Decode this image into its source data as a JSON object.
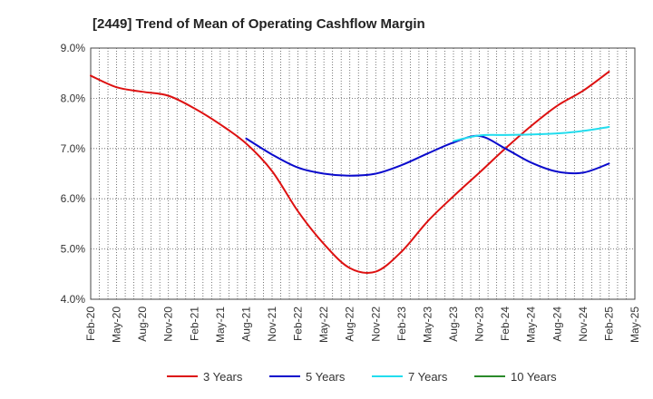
{
  "chart_data": {
    "type": "line",
    "title": "[2449]  Trend of Mean of Operating Cashflow Margin",
    "xlabel": "",
    "ylabel": "",
    "ylim": [
      4.0,
      9.0
    ],
    "yticks": [
      "4.0%",
      "5.0%",
      "6.0%",
      "7.0%",
      "8.0%",
      "9.0%"
    ],
    "ytick_values": [
      4.0,
      5.0,
      6.0,
      7.0,
      8.0,
      9.0
    ],
    "x_labels": [
      "Feb-20",
      "May-20",
      "Aug-20",
      "Nov-20",
      "Feb-21",
      "May-21",
      "Aug-21",
      "Nov-21",
      "Feb-22",
      "May-22",
      "Aug-22",
      "Nov-22",
      "Feb-23",
      "May-23",
      "Aug-23",
      "Nov-23",
      "Feb-24",
      "May-24",
      "Aug-24",
      "Nov-24",
      "Feb-25",
      "May-25"
    ],
    "grid": true,
    "legend_position": "bottom",
    "series": [
      {
        "name": "3 Years",
        "color": "#dd1111",
        "points": [
          [
            0,
            8.45
          ],
          [
            1,
            8.22
          ],
          [
            2,
            8.13
          ],
          [
            3,
            8.05
          ],
          [
            4,
            7.8
          ],
          [
            5,
            7.48
          ],
          [
            6,
            7.1
          ],
          [
            7,
            6.55
          ],
          [
            8,
            5.75
          ],
          [
            9,
            5.1
          ],
          [
            10,
            4.62
          ],
          [
            11,
            4.55
          ],
          [
            12,
            4.95
          ],
          [
            13,
            5.55
          ],
          [
            14,
            6.05
          ],
          [
            15,
            6.52
          ],
          [
            16,
            7.0
          ],
          [
            17,
            7.45
          ],
          [
            18,
            7.85
          ],
          [
            19,
            8.15
          ],
          [
            20,
            8.53
          ]
        ]
      },
      {
        "name": "5 Years",
        "color": "#0a0acc",
        "points": [
          [
            6,
            7.2
          ],
          [
            7,
            6.88
          ],
          [
            8,
            6.62
          ],
          [
            9,
            6.5
          ],
          [
            10,
            6.46
          ],
          [
            11,
            6.5
          ],
          [
            12,
            6.67
          ],
          [
            13,
            6.9
          ],
          [
            14,
            7.12
          ],
          [
            15,
            7.25
          ],
          [
            16,
            7.0
          ],
          [
            17,
            6.72
          ],
          [
            18,
            6.54
          ],
          [
            19,
            6.52
          ],
          [
            20,
            6.7
          ]
        ]
      },
      {
        "name": "7 Years",
        "color": "#22ddee",
        "points": [
          [
            14,
            7.15
          ],
          [
            15,
            7.26
          ],
          [
            16,
            7.27
          ],
          [
            17,
            7.28
          ],
          [
            18,
            7.3
          ],
          [
            19,
            7.35
          ],
          [
            20,
            7.43
          ]
        ]
      },
      {
        "name": "10 Years",
        "color": "#2a8a2a",
        "points": []
      }
    ]
  }
}
